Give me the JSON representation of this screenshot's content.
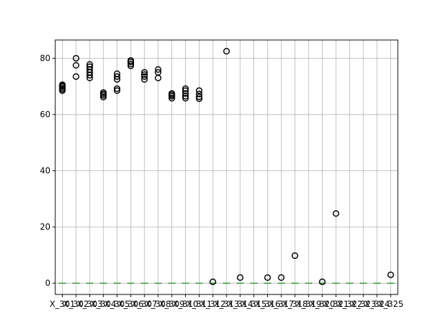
{
  "chart_data": {
    "type": "box",
    "title": "",
    "xlabel": "",
    "ylabel": "",
    "ylim": [
      -4,
      86.5
    ],
    "yticks": [
      0,
      20,
      40,
      60,
      80
    ],
    "grid": true,
    "categories": [
      "X_301",
      "X_302",
      "X_303",
      "X_304",
      "X_305",
      "X_306",
      "X_307",
      "X_308",
      "X_309",
      "X_310",
      "X_311",
      "X_312",
      "X_313",
      "X_314",
      "X_315",
      "X_316",
      "X_317",
      "X_318",
      "X_319",
      "X_320",
      "X_321",
      "X_322",
      "X_323",
      "X_324",
      "X_325"
    ],
    "xtick_labels": [
      "X_301",
      "X_302",
      "X_303",
      "X_304",
      "X_305",
      "X_306",
      "X_307",
      "X_308",
      "X_309",
      "X_310",
      "X_311",
      "X_312",
      "X_313",
      "X_314",
      "X_315",
      "X_316",
      "X_317",
      "X_318",
      "X_319",
      "X_320",
      "X_321",
      "X_322",
      "X_323",
      "X_324",
      "X_325"
    ],
    "median": 0,
    "outliers": [
      [
        68.5,
        69.0,
        69.5,
        70.0,
        70.3,
        70.6
      ],
      [
        73.5,
        77.5,
        80.0
      ],
      [
        73.0,
        74.0,
        75.0,
        76.0,
        77.0,
        77.8
      ],
      [
        66.2,
        66.8,
        67.3,
        67.8
      ],
      [
        68.5,
        69.2,
        72.5,
        73.5,
        74.5
      ],
      [
        77.3,
        78.0,
        78.7,
        79.2
      ],
      [
        72.5,
        73.5,
        74.2,
        75.0
      ],
      [
        73.0,
        75.0,
        76.0
      ],
      [
        65.8,
        66.5,
        67.0,
        67.5
      ],
      [
        65.8,
        66.5,
        67.5,
        68.5,
        69.2
      ],
      [
        65.6,
        66.3,
        67.3,
        68.5
      ],
      [
        0.5
      ],
      [
        82.5
      ],
      [
        2.0
      ],
      [],
      [
        2.0
      ],
      [
        2.0
      ],
      [
        9.8
      ],
      [],
      [
        0.5
      ],
      [
        24.8
      ],
      [],
      [],
      [],
      [
        3.0
      ]
    ]
  },
  "colors": {
    "median": "#2ca02c",
    "outlier_edge": "#000000",
    "grid": "#b0b0b0",
    "axes": "#000000"
  }
}
